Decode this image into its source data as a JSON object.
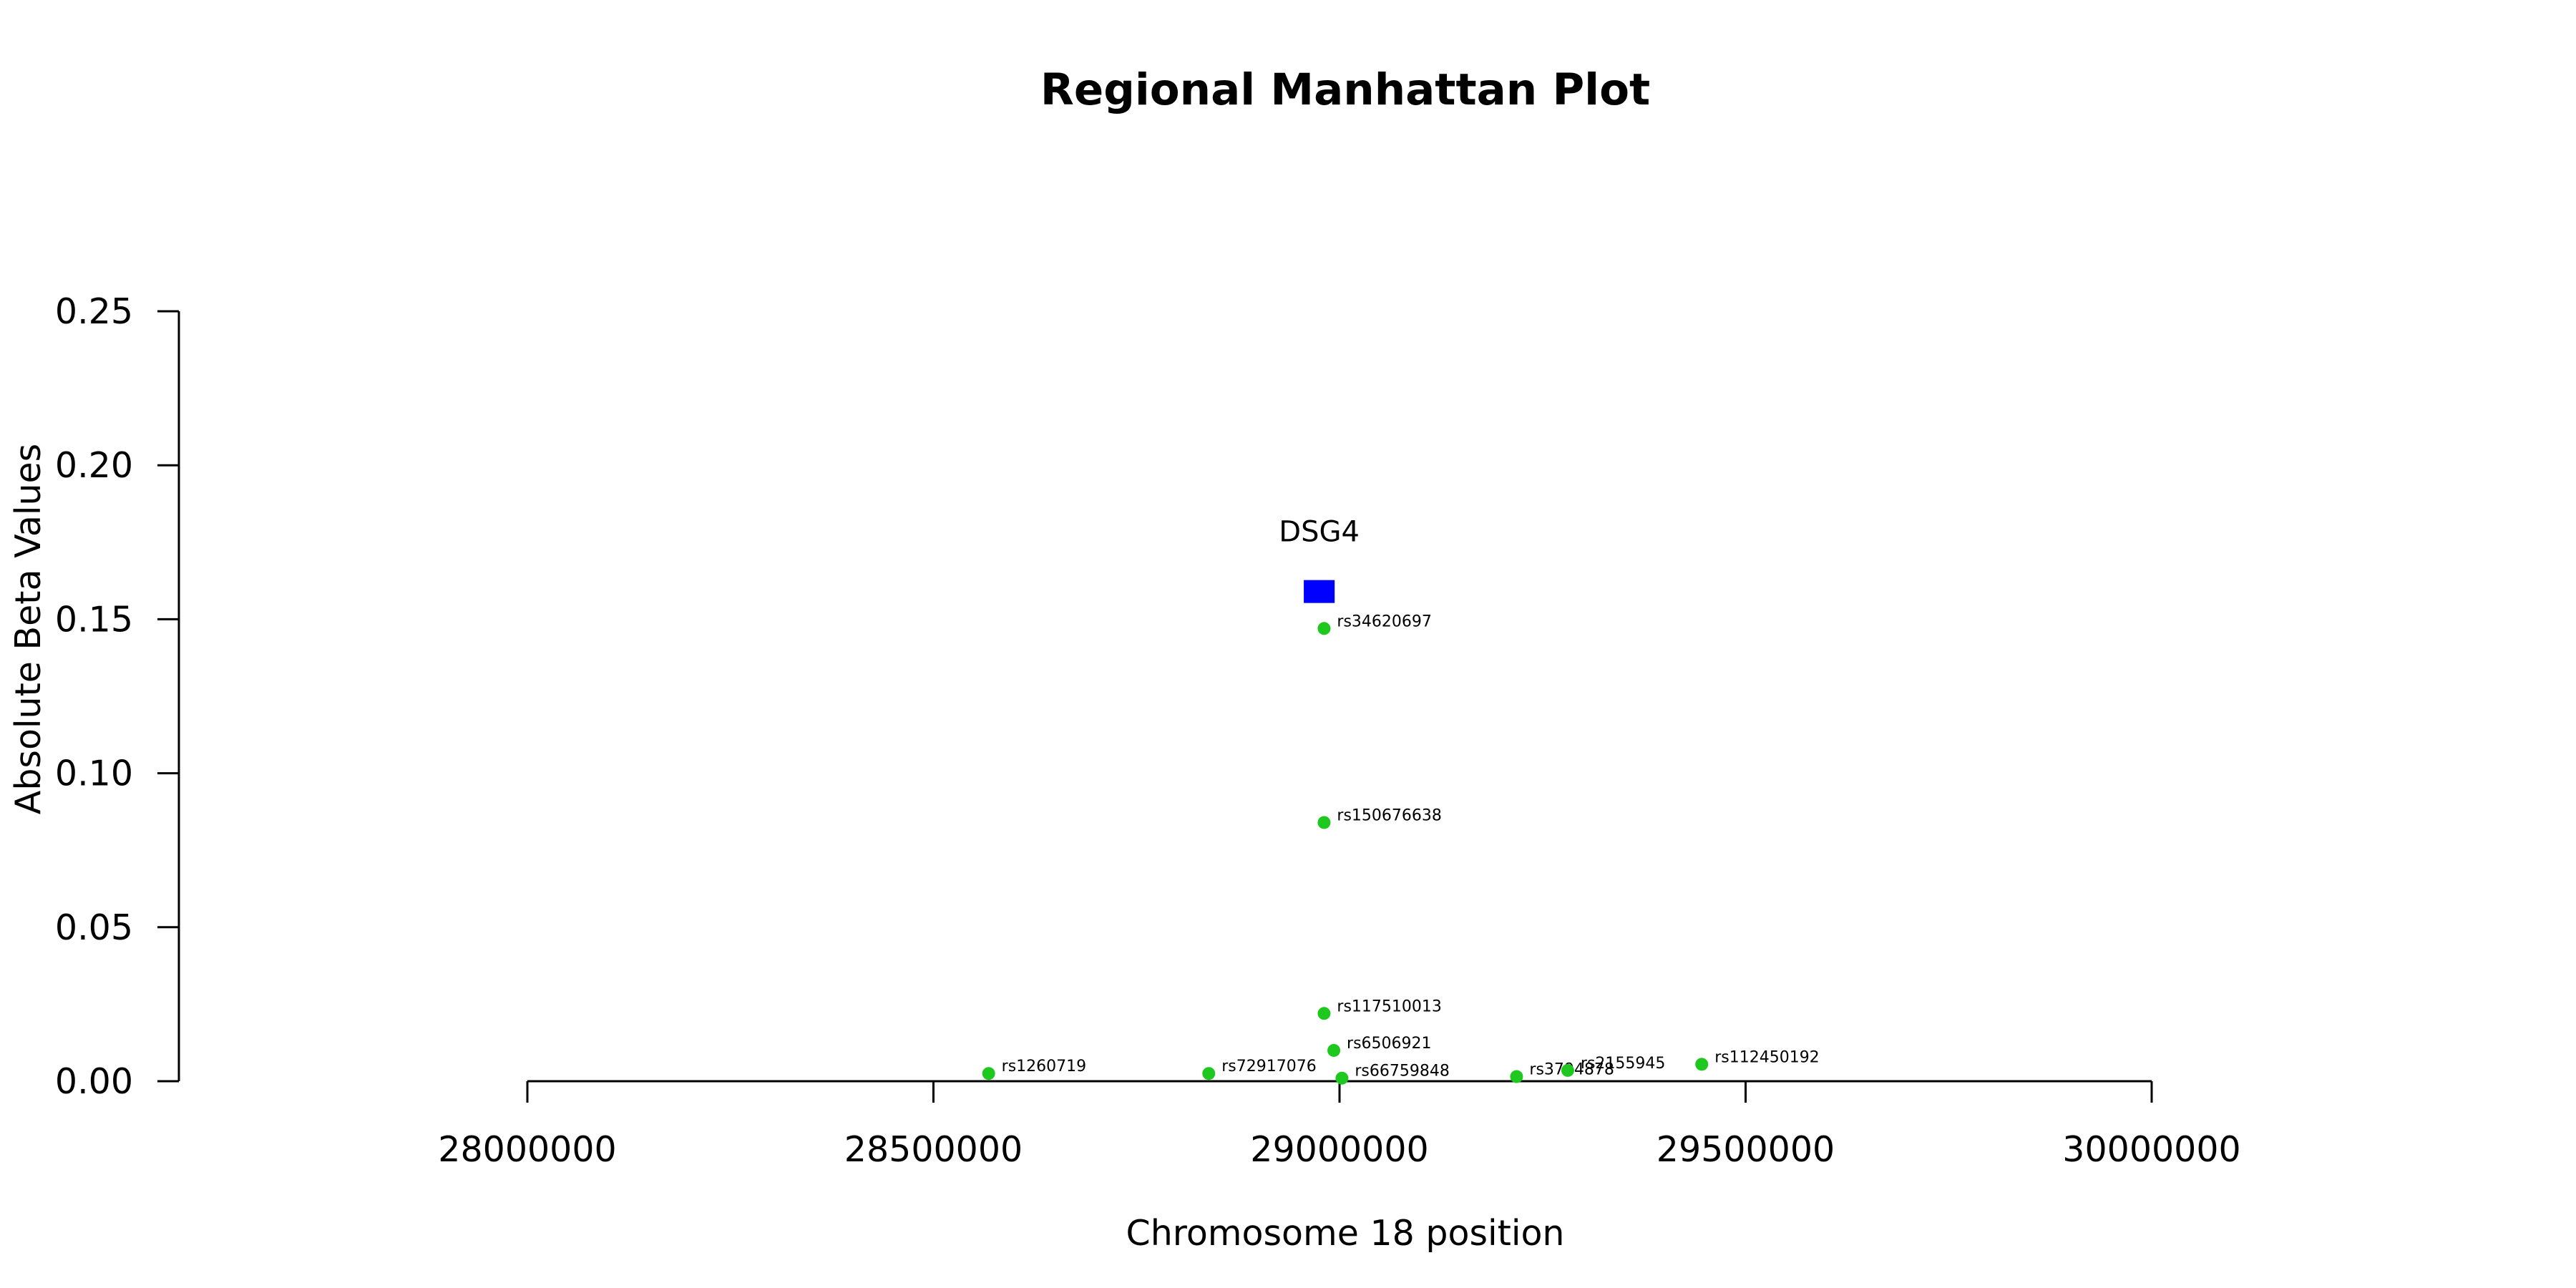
{
  "chart_data": {
    "type": "scatter",
    "title": "Regional Manhattan Plot",
    "xlabel": "Chromosome 18 position",
    "ylabel": "Absolute Beta Values",
    "xlim": [
      28000000,
      30000000
    ],
    "ylim": [
      0,
      0.25
    ],
    "x_ticks": [
      28000000,
      28500000,
      29000000,
      29500000,
      30000000
    ],
    "y_ticks": [
      0.0,
      0.05,
      0.1,
      0.15,
      0.2,
      0.25
    ],
    "x_tick_labels": [
      "28000000",
      "28500000",
      "29000000",
      "29500000",
      "30000000"
    ],
    "y_tick_labels": [
      "0.00",
      "0.05",
      "0.10",
      "0.15",
      "0.20",
      "0.25"
    ],
    "grid": false,
    "point_color": "#1ec81e",
    "gene_color": "#0000ff",
    "genes": [
      {
        "name": "DSG4",
        "start": 28956000,
        "end": 28994000,
        "y": 0.159
      }
    ],
    "series": [
      {
        "points": [
          {
            "label": "rs34620697",
            "x": 28981000,
            "y": 0.147
          },
          {
            "label": "rs150676638",
            "x": 28981000,
            "y": 0.084
          },
          {
            "label": "rs117510013",
            "x": 28981000,
            "y": 0.022
          },
          {
            "label": "rs6506921",
            "x": 28993000,
            "y": 0.01
          },
          {
            "label": "rs1260719",
            "x": 28568000,
            "y": 0.0025
          },
          {
            "label": "rs72917076",
            "x": 28839000,
            "y": 0.0025
          },
          {
            "label": "rs66759848",
            "x": 29003000,
            "y": 0.001
          },
          {
            "label": "rs3794878",
            "x": 29218000,
            "y": 0.0015
          },
          {
            "label": "rs2155945",
            "x": 29281000,
            "y": 0.0035
          },
          {
            "label": "rs112450192",
            "x": 29446000,
            "y": 0.0055
          }
        ]
      }
    ]
  }
}
